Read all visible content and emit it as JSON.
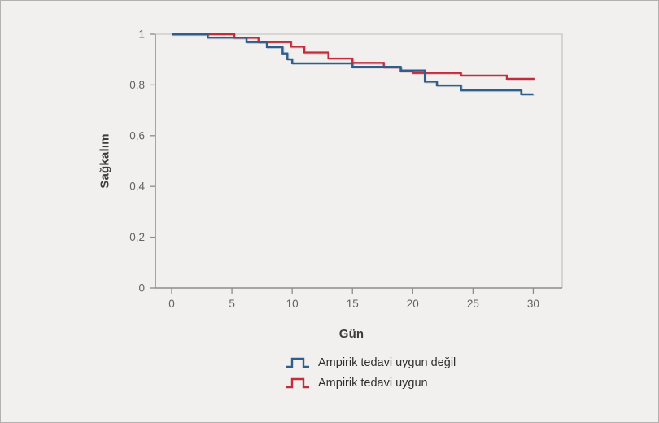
{
  "figure": {
    "background_color": "#f1f0ee",
    "border_color": "#b3b1af",
    "frame_color": "#c7c5c3",
    "axis_color": "#8c8c8c",
    "tick_text_color": "#636363"
  },
  "chart_data": {
    "type": "line",
    "subtype": "kaplan_meier_step",
    "title": "",
    "xlabel": "Gün",
    "ylabel": "Sağkalım",
    "xlim": [
      -1.35,
      32.4
    ],
    "ylim": [
      0,
      1
    ],
    "grid": false,
    "legend_position": "bottom-center",
    "x_ticks": [
      {
        "value": 0,
        "label": "0"
      },
      {
        "value": 5,
        "label": "5"
      },
      {
        "value": 10,
        "label": "10"
      },
      {
        "value": 15,
        "label": "15"
      },
      {
        "value": 20,
        "label": "20"
      },
      {
        "value": 25,
        "label": "25"
      },
      {
        "value": 30,
        "label": "30"
      }
    ],
    "y_ticks": [
      {
        "value": 1,
        "label": "1"
      },
      {
        "value": 0.8,
        "label": "0,8"
      },
      {
        "value": 0.6,
        "label": "0,6"
      },
      {
        "value": 0.4,
        "label": "0,4"
      },
      {
        "value": 0.2,
        "label": "0,2"
      },
      {
        "value": 0,
        "label": "0"
      }
    ],
    "series": [
      {
        "name": "Ampirik tedavi uygun",
        "color": "#c22d3e",
        "end_x": 30.1,
        "steps": [
          [
            0,
            1
          ],
          [
            5.2,
            0.986
          ],
          [
            7.2,
            0.969
          ],
          [
            9.9,
            0.951
          ],
          [
            11,
            0.928
          ],
          [
            13,
            0.904
          ],
          [
            15,
            0.887
          ],
          [
            17.6,
            0.869
          ],
          [
            19,
            0.854
          ],
          [
            20,
            0.847
          ],
          [
            24,
            0.837
          ],
          [
            27.8,
            0.824
          ]
        ]
      },
      {
        "name": "Ampirik tedavi uygun değil",
        "color": "#2e5f8c",
        "end_x": 30.0,
        "steps": [
          [
            0,
            1
          ],
          [
            3,
            0.987
          ],
          [
            6.2,
            0.969
          ],
          [
            7.9,
            0.949
          ],
          [
            9.2,
            0.924
          ],
          [
            9.6,
            0.901
          ],
          [
            10,
            0.885
          ],
          [
            15,
            0.871
          ],
          [
            19,
            0.857
          ],
          [
            21,
            0.813
          ],
          [
            22,
            0.798
          ],
          [
            24,
            0.779
          ],
          [
            29,
            0.763
          ]
        ]
      }
    ]
  },
  "legend": {
    "items": [
      {
        "label": "Ampirik tedavi uygun değil",
        "color": "#2e5f8c"
      },
      {
        "label": "Ampirik tedavi uygun",
        "color": "#c22d3e"
      }
    ]
  }
}
